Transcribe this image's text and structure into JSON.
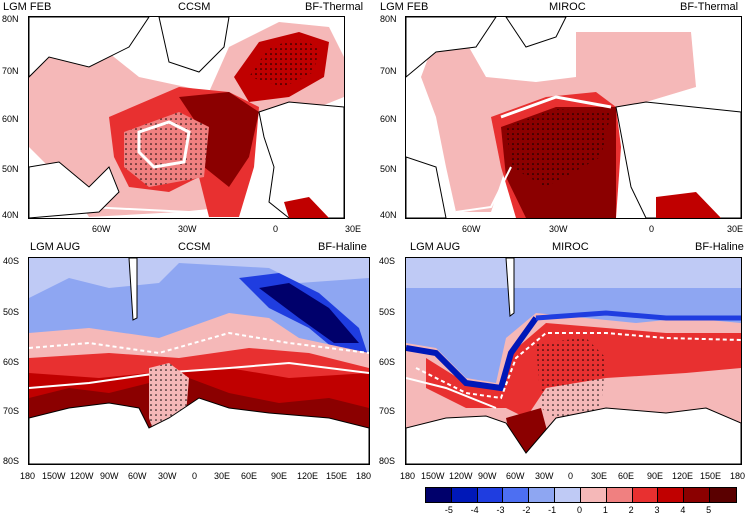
{
  "panels": [
    {
      "id": "tl",
      "left": "LGM FEB",
      "center": "CCSM",
      "right": "BF-Thermal",
      "yticks": [
        "80N",
        "70N",
        "60N",
        "50N",
        "40N"
      ],
      "xticks": [
        "60W",
        "30W",
        "0",
        "30E"
      ]
    },
    {
      "id": "tr",
      "left": "LGM FEB",
      "center": "MIROC",
      "right": "BF-Thermal",
      "yticks": [
        "80N",
        "70N",
        "60N",
        "50N",
        "40N"
      ],
      "xticks": [
        "60W",
        "30W",
        "0",
        "30E"
      ]
    },
    {
      "id": "bl",
      "left": "LGM AUG",
      "center": "CCSM",
      "right": "BF-Haline",
      "yticks": [
        "40S",
        "50S",
        "60S",
        "70S",
        "80S"
      ],
      "xticks": [
        "180",
        "150W",
        "120W",
        "90W",
        "60W",
        "30W",
        "0",
        "30E",
        "60E",
        "90E",
        "120E",
        "150E",
        "180"
      ]
    },
    {
      "id": "br",
      "left": "LGM AUG",
      "center": "MIROC",
      "right": "BF-Haline",
      "yticks": [
        "40S",
        "50S",
        "60S",
        "70S",
        "80S"
      ],
      "xticks": [
        "180",
        "150W",
        "120W",
        "90W",
        "60W",
        "30W",
        "0",
        "30E",
        "60E",
        "90E",
        "120E",
        "150E",
        "180"
      ]
    }
  ],
  "colorbar": {
    "labels": [
      "-5",
      "-4",
      "-3",
      "-2",
      "-1",
      "0",
      "1",
      "2",
      "3",
      "4",
      "5"
    ],
    "colors": [
      "#00006b",
      "#0018b8",
      "#1f3de0",
      "#4d6ff2",
      "#8ea6f2",
      "#bfcaf5",
      "#f5b8b8",
      "#f08080",
      "#e83030",
      "#c00000",
      "#8b0000",
      "#5a0000"
    ]
  }
}
